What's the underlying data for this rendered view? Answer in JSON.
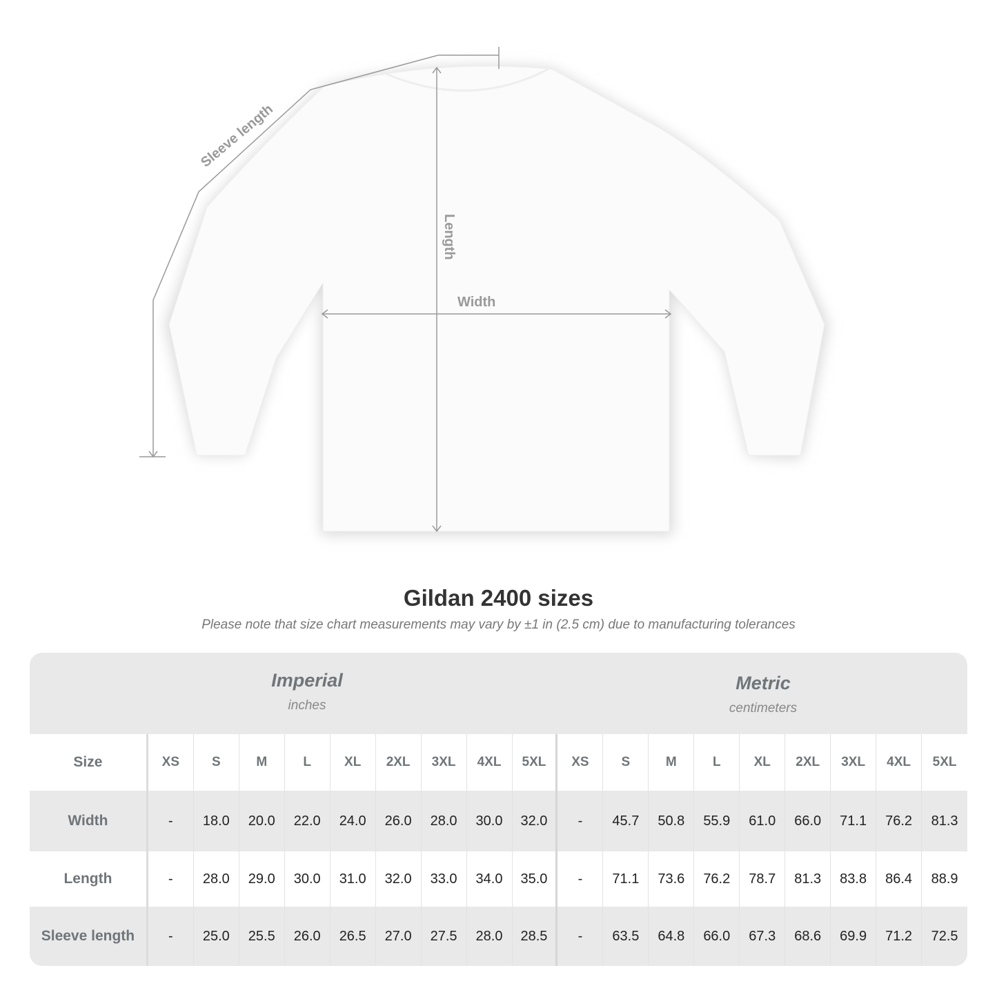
{
  "diagram": {
    "sleeve_label": "Sleeve length",
    "length_label": "Length",
    "width_label": "Width"
  },
  "title": "Gildan 2400 sizes",
  "note": "Please note that size chart measurements may vary by ±1 in (2.5 cm) due to manufacturing tolerances",
  "imperial": {
    "name": "Imperial",
    "unit": "inches"
  },
  "metric": {
    "name": "Metric",
    "unit": "centimeters"
  },
  "size_label": "Size",
  "sizes": [
    "XS",
    "S",
    "M",
    "L",
    "XL",
    "2XL",
    "3XL",
    "4XL",
    "5XL",
    "XS",
    "S",
    "M",
    "L",
    "XL",
    "2XL",
    "3XL",
    "4XL",
    "5XL"
  ],
  "rows": [
    {
      "label": "Width",
      "values": [
        "-",
        "18.0",
        "20.0",
        "22.0",
        "24.0",
        "26.0",
        "28.0",
        "30.0",
        "32.0",
        "-",
        "45.7",
        "50.8",
        "55.9",
        "61.0",
        "66.0",
        "71.1",
        "76.2",
        "81.3"
      ]
    },
    {
      "label": "Length",
      "values": [
        "-",
        "28.0",
        "29.0",
        "30.0",
        "31.0",
        "32.0",
        "33.0",
        "34.0",
        "35.0",
        "-",
        "71.1",
        "73.6",
        "76.2",
        "78.7",
        "81.3",
        "83.8",
        "86.4",
        "88.9"
      ]
    },
    {
      "label": "Sleeve length",
      "values": [
        "-",
        "25.0",
        "25.5",
        "26.0",
        "26.5",
        "27.0",
        "27.5",
        "28.0",
        "28.5",
        "-",
        "63.5",
        "64.8",
        "66.0",
        "67.3",
        "68.6",
        "69.9",
        "71.2",
        "72.5"
      ]
    }
  ],
  "colors": {
    "header_bg": "#e9e9e9",
    "label_text": "#6f7579",
    "measure_line": "#999999"
  }
}
